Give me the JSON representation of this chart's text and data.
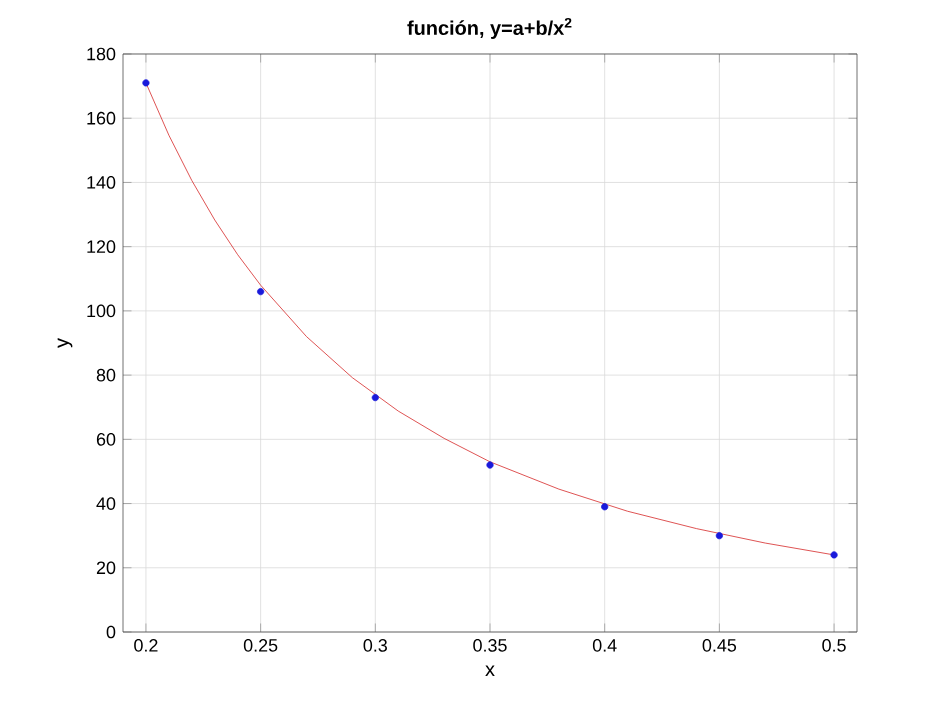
{
  "chart_data": {
    "type": "scatter",
    "title": "función, y=a+b/x$^{2}$",
    "xlabel": "x",
    "ylabel": "y",
    "xlim": [
      0.19,
      0.51
    ],
    "ylim": [
      0,
      180
    ],
    "xticks": [
      0.2,
      0.25,
      0.3,
      0.35,
      0.4,
      0.45,
      0.5
    ],
    "yticks": [
      0,
      20,
      40,
      60,
      80,
      100,
      120,
      140,
      160,
      180
    ],
    "grid": true,
    "series": [
      {
        "type": "line",
        "color": "#d62828",
        "marker": "none",
        "line_style": "solid",
        "x": [
          0.2,
          0.21,
          0.22,
          0.23,
          0.24,
          0.25,
          0.27,
          0.29,
          0.31,
          0.33,
          0.35,
          0.38,
          0.41,
          0.44,
          0.47,
          0.5
        ],
        "values": [
          171,
          154.7,
          140.6,
          128.3,
          117.5,
          108,
          92,
          79.2,
          68.8,
          60.3,
          53,
          44.5,
          37.6,
          32.2,
          27.7,
          24
        ]
      },
      {
        "color": "#1a1adb",
        "marker": "circle",
        "x": [
          0.2,
          0.25,
          0.3,
          0.35,
          0.4,
          0.45,
          0.5
        ],
        "values": [
          171,
          106,
          73,
          52,
          39,
          30,
          24
        ]
      }
    ]
  }
}
